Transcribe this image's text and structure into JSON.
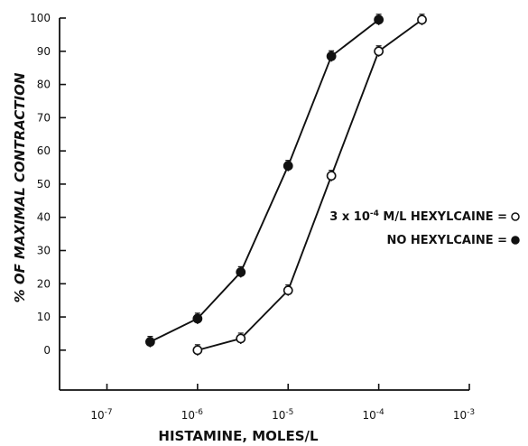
{
  "chart_data": {
    "type": "line",
    "xlabel": "HISTAMINE, MOLES/L",
    "ylabel": "% OF MAXIMAL CONTRACTION",
    "x_scale": "log",
    "xlim": [
      3e-08,
      0.001
    ],
    "ylim": [
      -12,
      100
    ],
    "y_ticks": [
      0,
      10,
      20,
      30,
      40,
      50,
      60,
      70,
      80,
      90,
      100
    ],
    "x_ticks": [
      {
        "value": 1e-07,
        "base": "10",
        "exp": "-7"
      },
      {
        "value": 1e-06,
        "base": "10",
        "exp": "-6"
      },
      {
        "value": 1e-05,
        "base": "10",
        "exp": "-5"
      },
      {
        "value": 0.0001,
        "base": "10",
        "exp": "-4"
      },
      {
        "value": 0.001,
        "base": "10",
        "exp": "-3"
      }
    ],
    "grid": false,
    "legend_position": "right",
    "series": [
      {
        "label_parts": [
          "3 x 10",
          "-4",
          " M/L HEXYLCAINE = "
        ],
        "marker": "open-circle",
        "x": [
          1e-06,
          3e-06,
          1e-05,
          3e-05,
          0.0001,
          0.0003
        ],
        "y": [
          0,
          3.5,
          18,
          52.5,
          90,
          99.5
        ]
      },
      {
        "label_parts": [
          "NO HEXYLCAINE = "
        ],
        "marker": "filled-circle",
        "x": [
          3e-07,
          1e-06,
          3e-06,
          1e-05,
          3e-05,
          0.0001
        ],
        "y": [
          2.5,
          9.5,
          23.5,
          55.5,
          88.5,
          99.5
        ]
      }
    ]
  }
}
